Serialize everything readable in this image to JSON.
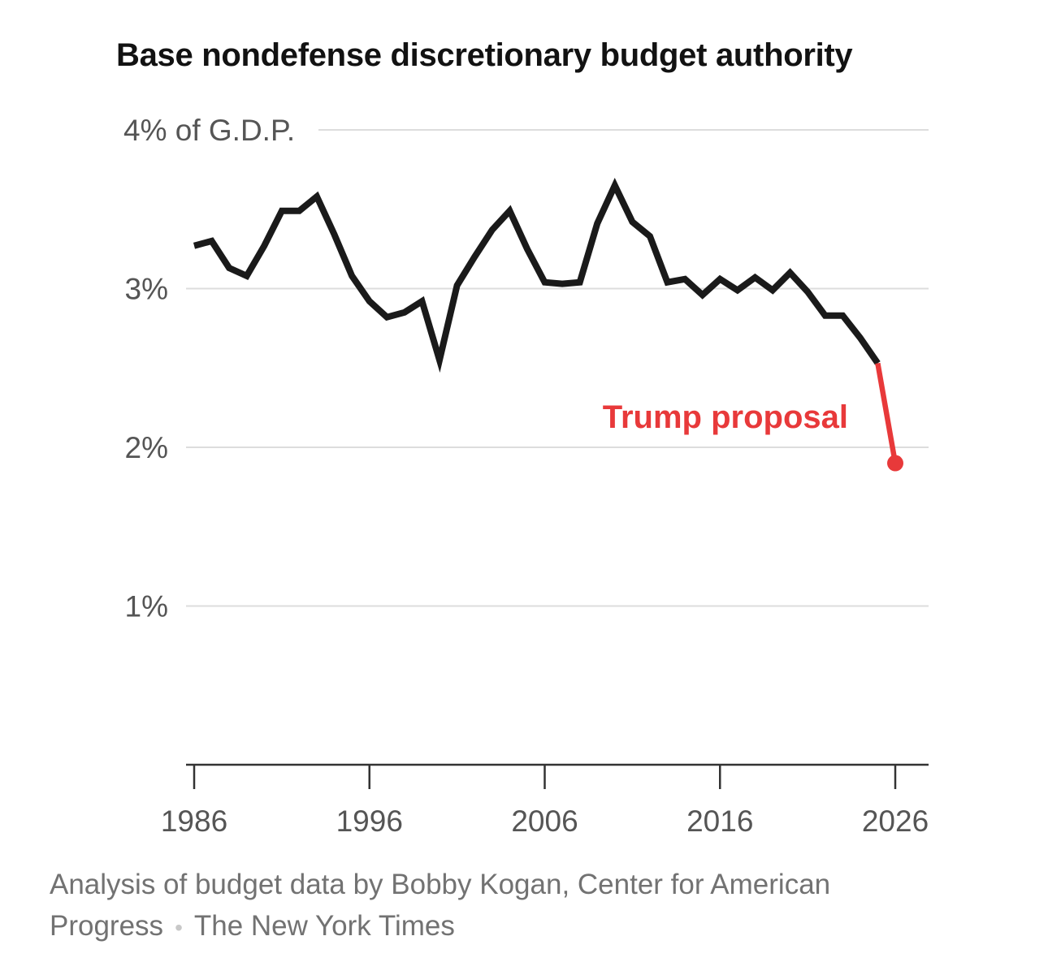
{
  "chart_data": {
    "type": "line",
    "title": "Base nondefense discretionary budget authority",
    "xlabel": "",
    "ylabel": "",
    "xlim": [
      1986,
      2026
    ],
    "ylim": [
      0,
      4
    ],
    "x_ticks": [
      "1986",
      "1996",
      "2006",
      "2016",
      "2026"
    ],
    "y_ticks": [
      {
        "value": 1,
        "label": "1%"
      },
      {
        "value": 2,
        "label": "2%"
      },
      {
        "value": 3,
        "label": "3%"
      },
      {
        "value": 4,
        "label": "4% of G.D.P."
      }
    ],
    "grid": true,
    "colors": {
      "history": "#1a1a1a",
      "proposal": "#e8393a",
      "grid": "#dddddd",
      "axis": "#333333"
    },
    "series": [
      {
        "key": "history",
        "x": [
          1986,
          1987,
          1988,
          1989,
          1990,
          1991,
          1992,
          1993,
          1994,
          1995,
          1996,
          1997,
          1998,
          1999,
          2000,
          2001,
          2002,
          2003,
          2004,
          2005,
          2006,
          2007,
          2008,
          2009,
          2010,
          2011,
          2012,
          2013,
          2014,
          2015,
          2016,
          2017,
          2018,
          2019,
          2020,
          2021,
          2022,
          2023,
          2024,
          2025
        ],
        "values": [
          3.27,
          3.3,
          3.13,
          3.08,
          3.27,
          3.49,
          3.49,
          3.58,
          3.34,
          3.08,
          2.92,
          2.82,
          2.85,
          2.92,
          2.55,
          3.02,
          3.2,
          3.37,
          3.49,
          3.25,
          3.04,
          3.03,
          3.04,
          3.41,
          3.65,
          3.42,
          3.33,
          3.04,
          3.06,
          2.96,
          3.06,
          2.99,
          3.07,
          2.99,
          3.1,
          2.98,
          2.83,
          2.83,
          2.69,
          2.53
        ]
      },
      {
        "key": "proposal",
        "name": "Trump proposal",
        "x": [
          2025,
          2026
        ],
        "values": [
          2.53,
          1.9
        ]
      }
    ],
    "annotations": [
      {
        "text": "Trump proposal",
        "series": "proposal"
      }
    ]
  },
  "footer": {
    "source_line": "Analysis of budget data by Bobby Kogan, Center for American Progress",
    "separator": "•",
    "publisher": "The New York Times"
  }
}
